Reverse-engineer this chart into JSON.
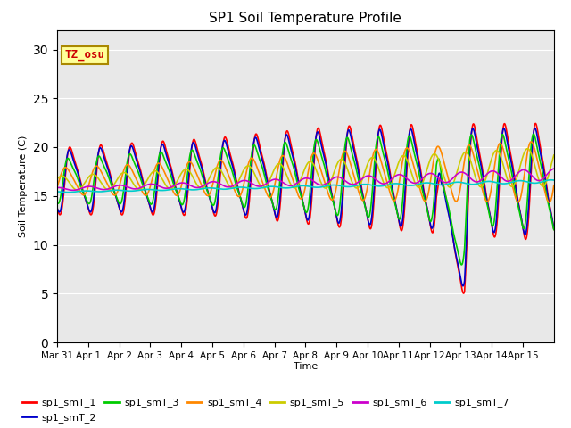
{
  "title": "SP1 Soil Temperature Profile",
  "xlabel": "Time",
  "ylabel": "Soil Temperature (C)",
  "ylim": [
    0,
    32
  ],
  "yticks": [
    0,
    5,
    10,
    15,
    20,
    25,
    30
  ],
  "annotation": "TZ_osu",
  "legend_entries": [
    "sp1_smT_1",
    "sp1_smT_2",
    "sp1_smT_3",
    "sp1_smT_4",
    "sp1_smT_5",
    "sp1_smT_6",
    "sp1_smT_7"
  ],
  "line_colors": [
    "#ff0000",
    "#0000cc",
    "#00cc00",
    "#ff8800",
    "#cccc00",
    "#cc00cc",
    "#00cccc"
  ],
  "background_color": "#e8e8e8",
  "xtick_labels": [
    "Mar 31",
    "Apr 1",
    "Apr 2",
    "Apr 3",
    "Apr 4",
    "Apr 5",
    "Apr 6",
    "Apr 7",
    "Apr 8",
    "Apr 9",
    "Apr 10",
    "Apr 11",
    "Apr 12",
    "Apr 13",
    "Apr 14",
    "Apr 15"
  ],
  "n_days": 16,
  "pts_per_day": 96,
  "figsize": [
    6.4,
    4.8
  ],
  "dpi": 100
}
